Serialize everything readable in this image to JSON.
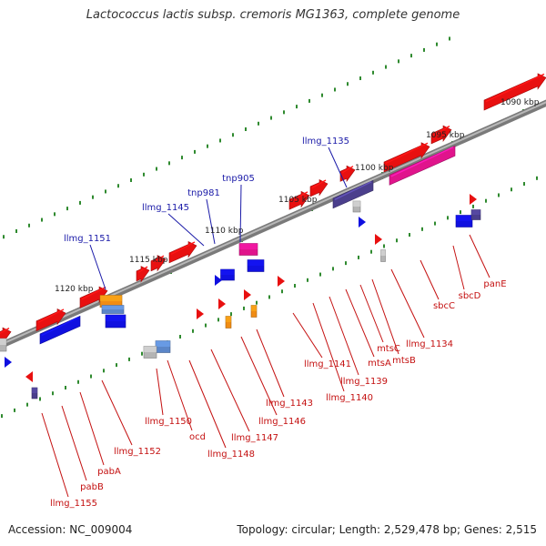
{
  "title": "Lactococcus lactis subsp. cremoris MG1363, complete genome",
  "accession_text": "Accession: NC_009004",
  "topology_text": "Topology: circular; Length: 2,529,478 bp; Genes: 2,515",
  "colors": {
    "backbone": "#8c8c8c",
    "tick": "#2f8a2f",
    "label_blue": "#1a1aa8",
    "label_red": "#c41010",
    "gene_red": "#e81010",
    "gene_blue": "#1010e0",
    "gene_magenta": "#e0148c",
    "gene_purple": "#4b3f8c",
    "gene_orange": "#f08c14",
    "gene_steel": "#5b86c8",
    "gene_gray": "#b4b4b4"
  },
  "scale_labels": [
    "1090 kbp",
    "1095 kbp",
    "1100 kbp",
    "1105 kbp",
    "1110 kbp",
    "1115 kbp",
    "1120 kbp"
  ],
  "gene_labels_upper": [
    "llmg_1135",
    "tnp905",
    "tnp981",
    "llmg_1145",
    "llmg_1151"
  ],
  "gene_labels_lower": [
    "panE",
    "sbcD",
    "sbcC",
    "llmg_1134",
    "mtsB",
    "mtsC",
    "mtsA",
    "llmg_1139",
    "llmg_1140",
    "llmg_1141",
    "llmg_1143",
    "llmg_1146",
    "llmg_1147",
    "llmg_1148",
    "ocd",
    "llmg_1150",
    "llmg_1152",
    "pabA",
    "pabB",
    "llmg_1155"
  ]
}
